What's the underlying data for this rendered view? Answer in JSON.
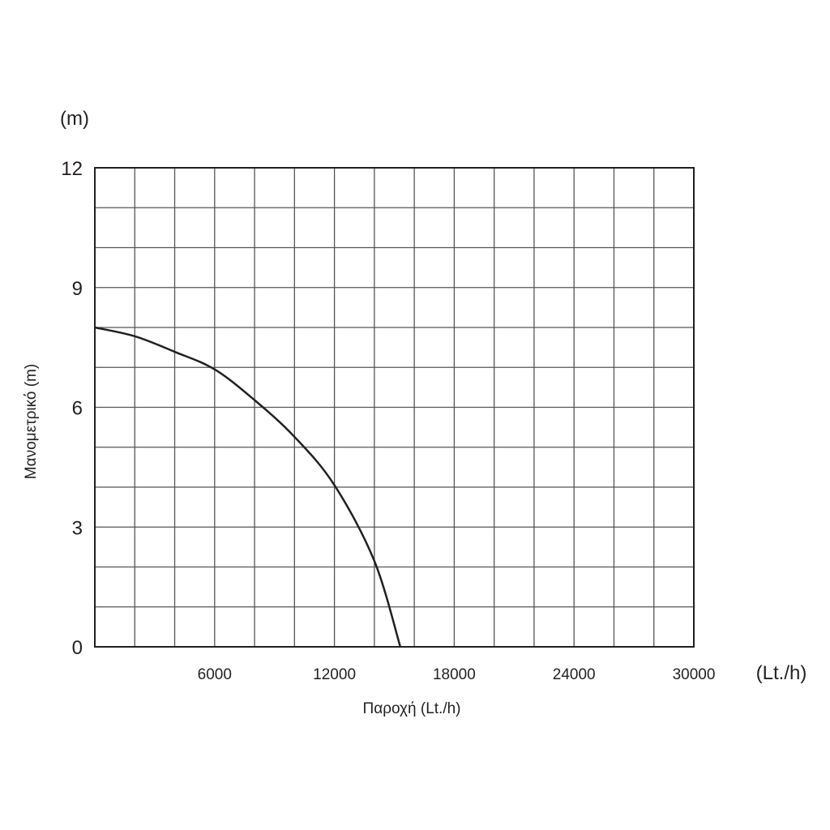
{
  "chart_data": {
    "type": "line",
    "title": "",
    "xlabel": "Παροχή (Lt./h)",
    "ylabel": "Μανομετρικό (m)",
    "x_unit": "(Lt./h)",
    "y_unit": "(m)",
    "xlim": [
      0,
      30000
    ],
    "ylim": [
      0,
      12
    ],
    "x_ticks": [
      6000,
      12000,
      18000,
      24000,
      30000
    ],
    "y_ticks": [
      0,
      3,
      6,
      9,
      12
    ],
    "x_grid_step": 2000,
    "y_grid_step": 1,
    "grid": true,
    "line_color": "#231f20",
    "series": [
      {
        "x": [
          0,
          2000,
          4000,
          6000,
          8000,
          10000,
          12000,
          14000,
          15300
        ],
        "y": [
          8.0,
          7.78,
          7.39,
          6.95,
          6.18,
          5.26,
          4.05,
          2.15,
          0
        ]
      }
    ]
  }
}
